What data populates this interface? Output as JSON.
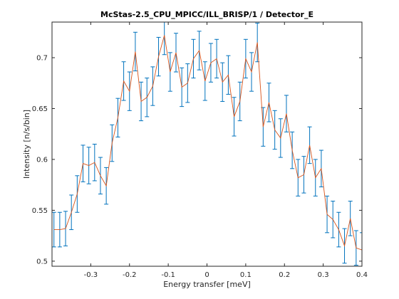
{
  "chart_data": {
    "type": "line",
    "title": "McStas-2.5_CPU_MPICC/ILL_BRISP/1 / Detector_E",
    "xlabel": "Energy transfer [meV]",
    "ylabel": "Intensity [n/s/bin]",
    "xlim": [
      -0.4,
      0.4
    ],
    "ylim": [
      0.495,
      0.735
    ],
    "xticks": [
      -0.3,
      -0.2,
      -0.1,
      0,
      0.1,
      0.2,
      0.3,
      0.4
    ],
    "xtick_labels": [
      "-0.3",
      "-0.2",
      "-0.1",
      "0",
      "0.1",
      "0.2",
      "0.3",
      "0.4"
    ],
    "yticks": [
      0.5,
      0.55,
      0.6,
      0.65,
      0.7
    ],
    "ytick_labels": [
      "0.5",
      "0.55",
      "0.6",
      "0.65",
      "0.7"
    ],
    "grid": false,
    "line_color": "#d95319",
    "errorbar_color": "#0072bd",
    "series": [
      {
        "x": [
          -0.395,
          -0.38,
          -0.365,
          -0.35,
          -0.335,
          -0.32,
          -0.305,
          -0.29,
          -0.275,
          -0.26,
          -0.245,
          -0.23,
          -0.215,
          -0.2,
          -0.185,
          -0.17,
          -0.155,
          -0.14,
          -0.125,
          -0.11,
          -0.095,
          -0.08,
          -0.065,
          -0.05,
          -0.035,
          -0.02,
          -0.005,
          0.01,
          0.025,
          0.04,
          0.055,
          0.07,
          0.085,
          0.1,
          0.115,
          0.13,
          0.145,
          0.16,
          0.175,
          0.19,
          0.205,
          0.22,
          0.235,
          0.25,
          0.265,
          0.28,
          0.295,
          0.31,
          0.325,
          0.34,
          0.355,
          0.37,
          0.385,
          0.4
        ],
        "y": [
          0.531,
          0.531,
          0.532,
          0.548,
          0.566,
          0.596,
          0.594,
          0.597,
          0.584,
          0.574,
          0.616,
          0.641,
          0.677,
          0.667,
          0.706,
          0.657,
          0.661,
          0.672,
          0.701,
          0.722,
          0.686,
          0.705,
          0.671,
          0.675,
          0.699,
          0.707,
          0.677,
          0.695,
          0.699,
          0.676,
          0.683,
          0.642,
          0.657,
          0.699,
          0.686,
          0.715,
          0.632,
          0.656,
          0.629,
          0.621,
          0.645,
          0.609,
          0.582,
          0.585,
          0.614,
          0.582,
          0.591,
          0.546,
          0.541,
          0.531,
          0.515,
          0.542,
          0.513,
          0.511
        ],
        "err": [
          0.017,
          0.017,
          0.017,
          0.017,
          0.018,
          0.018,
          0.018,
          0.018,
          0.018,
          0.018,
          0.018,
          0.019,
          0.019,
          0.019,
          0.019,
          0.019,
          0.019,
          0.019,
          0.019,
          0.019,
          0.019,
          0.019,
          0.019,
          0.019,
          0.019,
          0.019,
          0.019,
          0.019,
          0.019,
          0.019,
          0.019,
          0.019,
          0.019,
          0.019,
          0.019,
          0.019,
          0.019,
          0.019,
          0.019,
          0.019,
          0.018,
          0.018,
          0.018,
          0.018,
          0.018,
          0.018,
          0.018,
          0.018,
          0.018,
          0.017,
          0.017,
          0.017,
          0.017,
          0.017
        ]
      }
    ]
  }
}
